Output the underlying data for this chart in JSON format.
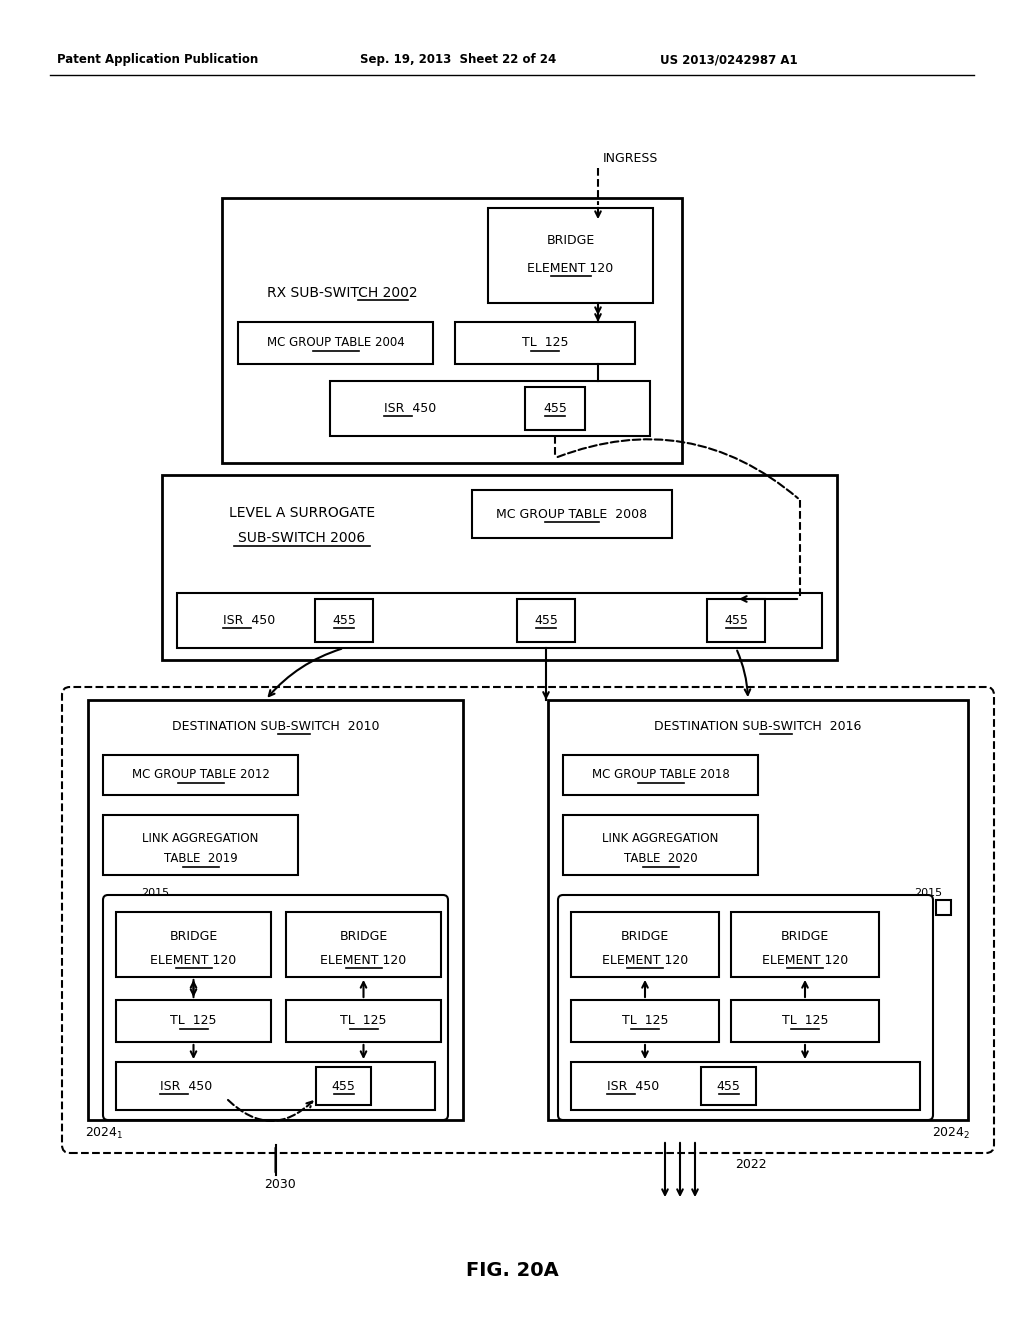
{
  "title": "FIG. 20A",
  "header_left": "Patent Application Publication",
  "header_center": "Sep. 19, 2013  Sheet 22 of 24",
  "header_right": "US 2013/0242987 A1",
  "bg_color": "#ffffff",
  "line_color": "#000000",
  "text_color": "#000000"
}
